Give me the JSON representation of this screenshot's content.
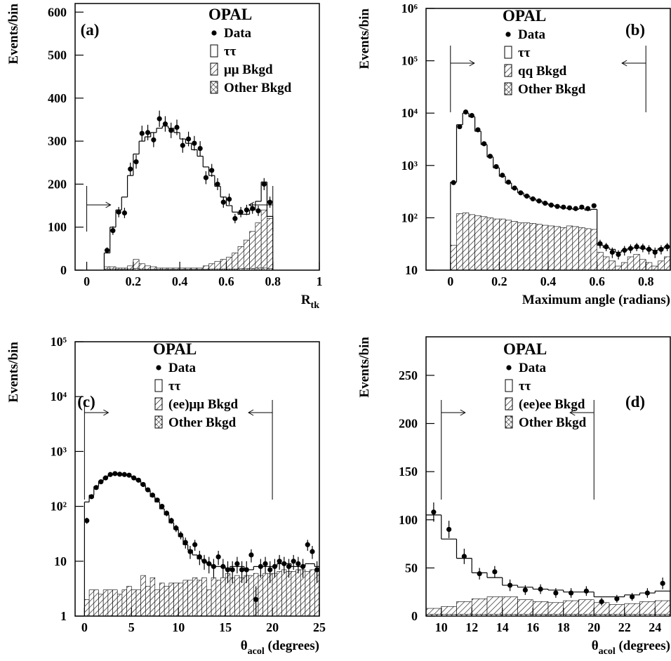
{
  "chart_data": [
    {
      "type": "histogram",
      "panel_label": "(a)",
      "experiment": "OPAL",
      "y_label": "Events/bin",
      "x_label": {
        "text": "R",
        "subscript": "tk"
      },
      "xlim": [
        -0.05,
        1.0
      ],
      "xticks": [
        0,
        0.2,
        0.4,
        0.6,
        0.8,
        1
      ],
      "ylim": [
        0,
        620
      ],
      "yticks": [
        0,
        100,
        200,
        300,
        400,
        500,
        600
      ],
      "log_y": false,
      "cuts": [
        0,
        0.8
      ],
      "bins": [
        0.075,
        0.1,
        0.125,
        0.15,
        0.175,
        0.2,
        0.225,
        0.25,
        0.275,
        0.3,
        0.325,
        0.35,
        0.375,
        0.4,
        0.425,
        0.45,
        0.475,
        0.5,
        0.525,
        0.55,
        0.575,
        0.6,
        0.625,
        0.65,
        0.675,
        0.7,
        0.725,
        0.75,
        0.775,
        0.8
      ],
      "series": [
        {
          "name": "Data",
          "color": "#000000",
          "values": [
            46,
            92,
            135,
            133,
            235,
            252,
            318,
            320,
            303,
            352,
            340,
            325,
            332,
            290,
            305,
            295,
            283,
            215,
            232,
            200,
            158,
            165,
            120,
            135,
            140,
            143,
            138,
            200,
            158
          ],
          "errors": [
            7,
            10,
            12,
            12,
            15,
            16,
            18,
            18,
            17,
            19,
            18,
            18,
            18,
            17,
            17,
            17,
            17,
            15,
            15,
            14,
            13,
            13,
            11,
            12,
            12,
            12,
            12,
            14,
            13
          ]
        },
        {
          "name": "ττ",
          "color": "#000000",
          "values": [
            40,
            100,
            140,
            170,
            220,
            270,
            300,
            310,
            320,
            330,
            335,
            330,
            320,
            305,
            295,
            280,
            265,
            240,
            220,
            195,
            170,
            150,
            135,
            130,
            130,
            140,
            160,
            205,
            125
          ]
        },
        {
          "name": "μμ Bkgd",
          "color": "#000000",
          "values": [
            8,
            8,
            5,
            5,
            10,
            25,
            15,
            10,
            8,
            5,
            5,
            5,
            5,
            5,
            5,
            5,
            5,
            10,
            15,
            20,
            25,
            30,
            40,
            55,
            70,
            90,
            110,
            140,
            120
          ]
        },
        {
          "name": "Other Bkgd",
          "color": "#000000",
          "values": [
            3,
            3,
            2,
            2,
            3,
            4,
            3,
            2,
            2,
            2,
            2,
            2,
            2,
            2,
            2,
            2,
            2,
            2,
            3,
            3,
            3,
            3,
            3,
            4,
            4,
            4,
            5,
            5,
            4
          ]
        }
      ]
    },
    {
      "type": "histogram",
      "panel_label": "(b)",
      "experiment": "OPAL",
      "y_label": "Events/bin",
      "x_label": {
        "text": "Maximum angle (radians)"
      },
      "xlim": [
        -0.1,
        0.9
      ],
      "xticks": [
        0,
        0.2,
        0.4,
        0.6,
        0.8
      ],
      "ylim": [
        10,
        1000000
      ],
      "yticks": [
        10,
        {
          "value": 100,
          "label": "10²"
        },
        {
          "value": 1000,
          "label": "10³"
        },
        {
          "value": 10000,
          "label": "10⁴"
        },
        {
          "value": 100000,
          "label": "10⁵"
        },
        {
          "value": 1000000,
          "label": "10⁶"
        }
      ],
      "log_y": true,
      "cuts": [
        0,
        0.8
      ],
      "bins": [
        0,
        0.025,
        0.05,
        0.075,
        0.1,
        0.125,
        0.15,
        0.175,
        0.2,
        0.225,
        0.25,
        0.275,
        0.3,
        0.325,
        0.35,
        0.375,
        0.4,
        0.425,
        0.45,
        0.475,
        0.5,
        0.525,
        0.55,
        0.575,
        0.6,
        0.625,
        0.65,
        0.675,
        0.7,
        0.725,
        0.75,
        0.775,
        0.8,
        0.825,
        0.85,
        0.875,
        0.9
      ],
      "series": [
        {
          "name": "Data",
          "color": "#000000",
          "values": [
            470,
            5500,
            10500,
            9000,
            4800,
            2600,
            1500,
            950,
            650,
            480,
            370,
            300,
            260,
            230,
            210,
            190,
            175,
            165,
            160,
            155,
            150,
            160,
            150,
            170,
            32,
            28,
            22,
            20,
            24,
            26,
            28,
            27,
            25,
            22,
            25,
            28
          ],
          "errors": [
            22,
            74,
            102,
            95,
            69,
            51,
            39,
            31,
            25,
            22,
            19,
            17,
            16,
            15,
            14,
            14,
            13,
            13,
            13,
            12,
            12,
            13,
            12,
            13,
            6,
            5,
            5,
            4,
            5,
            5,
            5,
            5,
            5,
            5,
            5,
            5
          ]
        },
        {
          "name": "ττ",
          "color": "#000000",
          "values": [
            480,
            6000,
            10000,
            8500,
            4500,
            2500,
            1450,
            900,
            620,
            460,
            360,
            300,
            260,
            230,
            210,
            190,
            175,
            165,
            155,
            150,
            145,
            150,
            140,
            145,
            30,
            27,
            25,
            22,
            24,
            26,
            27,
            26,
            25,
            24,
            26,
            28
          ]
        },
        {
          "name": "qq Bkgd",
          "color": "#000000",
          "values": [
            30,
            120,
            125,
            115,
            110,
            105,
            100,
            95,
            95,
            90,
            85,
            80,
            80,
            78,
            75,
            72,
            70,
            68,
            65,
            70,
            68,
            65,
            62,
            60,
            22,
            18,
            15,
            12,
            14,
            18,
            20,
            16,
            14,
            12,
            15,
            18
          ]
        },
        {
          "name": "Other Bkgd",
          "color": "#000000",
          "values": [
            3,
            3,
            3,
            3,
            3,
            3,
            3,
            3,
            3,
            3,
            3,
            3,
            3,
            3,
            3,
            3,
            3,
            3,
            3,
            3,
            3,
            3,
            3,
            3,
            3,
            3,
            3,
            3,
            3,
            3,
            3,
            3,
            3,
            3,
            3,
            3
          ]
        }
      ]
    },
    {
      "type": "histogram",
      "panel_label": "(c)",
      "experiment": "OPAL",
      "y_label": "Events/bin",
      "x_label": {
        "text": "θ",
        "subscript": "acol",
        "suffix": " (degrees)"
      },
      "xlim": [
        -1,
        25
      ],
      "xticks": [
        0,
        5,
        10,
        15,
        20,
        25
      ],
      "ylim": [
        1,
        100000
      ],
      "yticks": [
        1,
        10,
        {
          "value": 100,
          "label": "10²"
        },
        {
          "value": 1000,
          "label": "10³"
        },
        {
          "value": 10000,
          "label": "10⁴"
        },
        {
          "value": 100000,
          "label": "10⁵"
        }
      ],
      "log_y": true,
      "cuts": [
        0,
        20
      ],
      "bins": [
        0,
        0.5,
        1,
        1.5,
        2,
        2.5,
        3,
        3.5,
        4,
        4.5,
        5,
        5.5,
        6,
        6.5,
        7,
        7.5,
        8,
        8.5,
        9,
        9.5,
        10,
        10.5,
        11,
        11.5,
        12,
        12.5,
        13,
        13.5,
        14,
        14.5,
        15,
        15.5,
        16,
        16.5,
        17,
        17.5,
        18,
        18.5,
        19,
        19.5,
        20,
        20.5,
        21,
        21.5,
        22,
        22.5,
        23,
        23.5,
        24,
        24.5,
        25
      ],
      "series": [
        {
          "name": "Data",
          "color": "#000000",
          "values": [
            55,
            150,
            220,
            280,
            330,
            380,
            395,
            385,
            380,
            370,
            330,
            300,
            250,
            200,
            160,
            130,
            100,
            75,
            55,
            40,
            30,
            22,
            15,
            20,
            12,
            10,
            9,
            8,
            12,
            8,
            7,
            7,
            9,
            7,
            7,
            13,
            2,
            8,
            9,
            7,
            8,
            10,
            9,
            8,
            10,
            9,
            8,
            20,
            15,
            7
          ],
          "errors": [
            7,
            12,
            15,
            17,
            18,
            19,
            20,
            20,
            19,
            19,
            18,
            17,
            16,
            14,
            13,
            11,
            10,
            9,
            7,
            6,
            5,
            5,
            4,
            4.5,
            3.5,
            3,
            3,
            3,
            3.5,
            3,
            3,
            3,
            3,
            3,
            3,
            3.5,
            1.5,
            3,
            3,
            3,
            3,
            3,
            3,
            3,
            3,
            3,
            3,
            4.5,
            4,
            3
          ]
        },
        {
          "name": "ττ",
          "color": "#000000",
          "values": [
            120,
            160,
            230,
            290,
            340,
            370,
            380,
            380,
            370,
            360,
            330,
            290,
            240,
            195,
            150,
            120,
            90,
            70,
            50,
            38,
            28,
            20,
            16,
            13,
            11,
            10,
            9,
            8,
            8,
            8,
            7,
            8,
            8,
            8,
            7,
            7,
            8,
            8,
            8,
            8,
            8,
            9,
            9,
            9,
            8,
            8,
            8,
            9,
            9,
            8
          ]
        },
        {
          "name": "(ee)μμ Bkgd",
          "color": "#000000",
          "values": [
            2,
            3,
            3,
            2.5,
            3,
            3,
            3,
            2.5,
            3,
            3.5,
            3,
            3,
            5.5,
            3.5,
            5,
            3,
            4,
            3.5,
            4,
            4,
            4,
            4.5,
            4.5,
            5,
            4.5,
            5,
            3,
            5,
            4.5,
            5,
            6,
            5,
            5.5,
            5,
            5.5,
            5.5,
            6,
            5.5,
            6,
            6,
            6,
            6.5,
            7,
            6.5,
            6.5,
            7,
            7,
            6.5,
            7,
            7
          ]
        },
        {
          "name": "Other Bkgd",
          "color": "#000000",
          "values": [
            0.5,
            0.5,
            0.5,
            0.5,
            0.5,
            0.5,
            0.5,
            0.5,
            0.5,
            0.5,
            0.5,
            0.5,
            0.5,
            0.5,
            0.5,
            0.5,
            0.5,
            0.5,
            0.5,
            0.5,
            0.5,
            0.5,
            0.5,
            0.5,
            0.5,
            0.5,
            0.5,
            0.5,
            0.5,
            0.5,
            0.5,
            0.5,
            0.5,
            0.5,
            0.5,
            0.5,
            0.5,
            0.5,
            0.5,
            0.5,
            0.5,
            0.5,
            0.5,
            0.5,
            0.5,
            0.5,
            0.5,
            0.5,
            0.5,
            0.5
          ]
        }
      ]
    },
    {
      "type": "histogram",
      "panel_label": "(d)",
      "experiment": "OPAL",
      "y_label": "Events/bin",
      "x_label": {
        "text": "θ",
        "subscript": "acol",
        "suffix": " (degrees)"
      },
      "xlim": [
        9,
        25
      ],
      "xticks": [
        10,
        12,
        14,
        16,
        18,
        20,
        22,
        24
      ],
      "ylim": [
        0,
        290
      ],
      "yticks": [
        0,
        50,
        100,
        150,
        200,
        250
      ],
      "log_y": false,
      "cuts": [
        10,
        20
      ],
      "bins": [
        9,
        10,
        11,
        12,
        13,
        14,
        15,
        16,
        17,
        18,
        19,
        20,
        21,
        22,
        23,
        24,
        25
      ],
      "series": [
        {
          "name": "Data",
          "color": "#000000",
          "values": [
            108,
            90,
            62,
            44,
            46,
            32,
            27,
            28,
            24,
            24,
            26,
            15,
            18,
            20,
            24,
            34
          ],
          "errors": [
            10,
            9,
            8,
            6,
            6,
            6,
            5,
            5,
            5,
            5,
            5,
            4,
            4,
            4,
            5,
            6
          ]
        },
        {
          "name": "ττ",
          "color": "#000000",
          "values": [
            105,
            80,
            60,
            45,
            40,
            32,
            30,
            28,
            27,
            25,
            25,
            20,
            20,
            22,
            24,
            26
          ]
        },
        {
          "name": "(ee)ee Bkgd",
          "color": "#000000",
          "values": [
            8,
            10,
            15,
            18,
            20,
            20,
            17,
            15,
            14,
            16,
            17,
            14,
            12,
            13,
            15,
            16
          ]
        },
        {
          "name": "Other Bkgd",
          "color": "#000000",
          "values": [
            2,
            2,
            2,
            2,
            2,
            2,
            2,
            2,
            2,
            2,
            2,
            2,
            2,
            2,
            2,
            2
          ]
        }
      ]
    }
  ]
}
